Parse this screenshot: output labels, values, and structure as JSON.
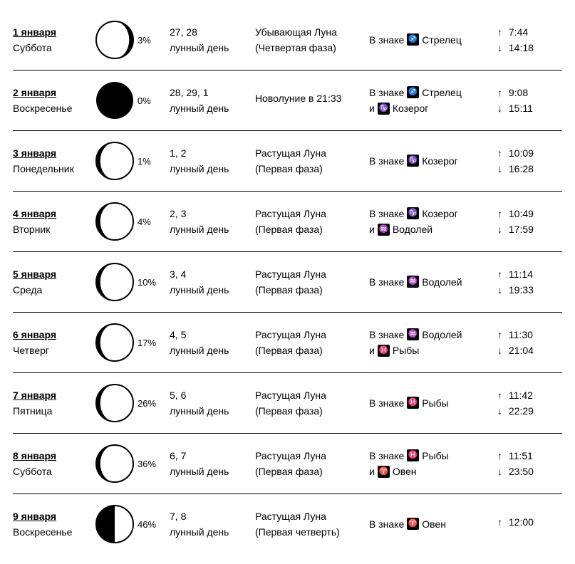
{
  "ui": {
    "lunar_day_label": "лунный день",
    "in_sign_prefix": "В знаке",
    "and_word": "и",
    "rise_arrow": "↑",
    "set_arrow": "↓"
  },
  "zodiac_glyphs": {
    "sagittarius": "♐",
    "capricorn": "♑",
    "aquarius": "♒",
    "pisces": "♓",
    "aries": "♈"
  },
  "rows": [
    {
      "date": "1 января",
      "weekday": "Суббота",
      "moon_type": "waning-crescent",
      "illumination": "3%",
      "lunar_days": "27, 28",
      "phase_name": "Убывающая Луна",
      "phase_sub": "(Четвертая фаза)",
      "signs": [
        {
          "glyph": "sagittarius",
          "name": "Стрелец"
        }
      ],
      "rise": "7:44",
      "set": "14:18"
    },
    {
      "date": "2 января",
      "weekday": "Воскресенье",
      "moon_type": "new",
      "illumination": "0%",
      "lunar_days": "28, 29, 1",
      "phase_name": "Новолуние в 21:33",
      "phase_sub": "",
      "signs": [
        {
          "glyph": "sagittarius",
          "name": "Стрелец"
        },
        {
          "glyph": "capricorn",
          "name": "Козерог"
        }
      ],
      "rise": "9:08",
      "set": "15:11"
    },
    {
      "date": "3 января",
      "weekday": "Понедельник",
      "moon_type": "waxing-crescent",
      "illumination": "1%",
      "lunar_days": "1, 2",
      "phase_name": "Растущая Луна",
      "phase_sub": "(Первая фаза)",
      "signs": [
        {
          "glyph": "capricorn",
          "name": "Козерог"
        }
      ],
      "rise": "10:09",
      "set": "16:28"
    },
    {
      "date": "4 января",
      "weekday": "Вторник",
      "moon_type": "waxing-crescent",
      "illumination": "4%",
      "lunar_days": "2, 3",
      "phase_name": "Растущая Луна",
      "phase_sub": "(Первая фаза)",
      "signs": [
        {
          "glyph": "capricorn",
          "name": "Козерог"
        },
        {
          "glyph": "aquarius",
          "name": "Водолей"
        }
      ],
      "rise": "10:49",
      "set": "17:59"
    },
    {
      "date": "5 января",
      "weekday": "Среда",
      "moon_type": "waxing-crescent",
      "illumination": "10%",
      "lunar_days": "3, 4",
      "phase_name": "Растущая Луна",
      "phase_sub": "(Первая фаза)",
      "signs": [
        {
          "glyph": "aquarius",
          "name": "Водолей"
        }
      ],
      "rise": "11:14",
      "set": "19:33"
    },
    {
      "date": "6 января",
      "weekday": "Четверг",
      "moon_type": "waxing-crescent",
      "illumination": "17%",
      "lunar_days": "4, 5",
      "phase_name": "Растущая Луна",
      "phase_sub": "(Первая фаза)",
      "signs": [
        {
          "glyph": "aquarius",
          "name": "Водолей"
        },
        {
          "glyph": "pisces",
          "name": "Рыбы"
        }
      ],
      "rise": "11:30",
      "set": "21:04"
    },
    {
      "date": "7 января",
      "weekday": "Пятница",
      "moon_type": "waxing-crescent",
      "illumination": "26%",
      "lunar_days": "5, 6",
      "phase_name": "Растущая Луна",
      "phase_sub": "(Первая фаза)",
      "signs": [
        {
          "glyph": "pisces",
          "name": "Рыбы"
        }
      ],
      "rise": "11:42",
      "set": "22:29"
    },
    {
      "date": "8 января",
      "weekday": "Суббота",
      "moon_type": "waxing-crescent",
      "illumination": "36%",
      "lunar_days": "6, 7",
      "phase_name": "Растущая Луна",
      "phase_sub": "(Первая фаза)",
      "signs": [
        {
          "glyph": "pisces",
          "name": "Рыбы"
        },
        {
          "glyph": "aries",
          "name": "Овен"
        }
      ],
      "rise": "11:51",
      "set": "23:50"
    },
    {
      "date": "9 января",
      "weekday": "Воскресенье",
      "moon_type": "first-quarter",
      "illumination": "46%",
      "lunar_days": "7, 8",
      "phase_name": "Растущая Луна",
      "phase_sub": "(Первая четверть)",
      "signs": [
        {
          "glyph": "aries",
          "name": "Овен"
        }
      ],
      "rise": "12:00",
      "set": ""
    }
  ]
}
